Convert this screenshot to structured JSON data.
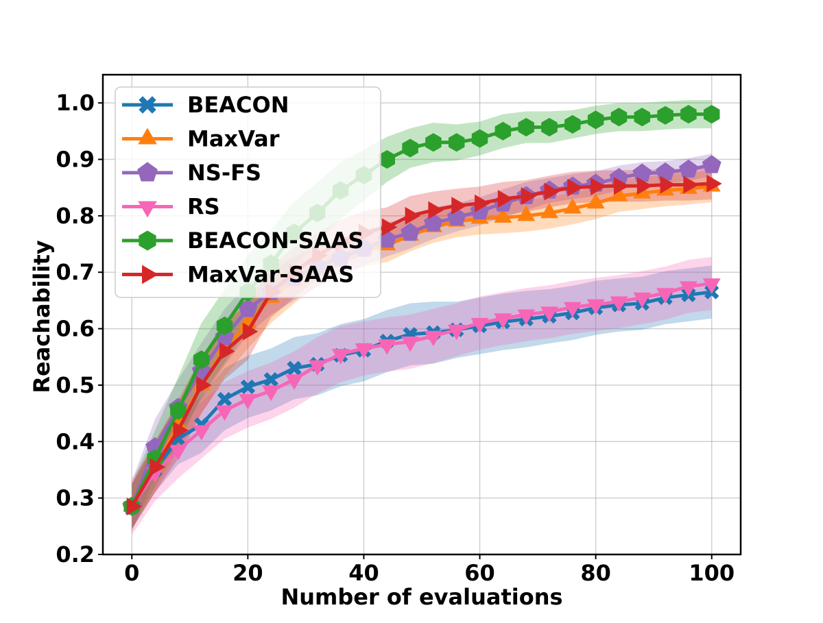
{
  "chart_data": {
    "type": "line",
    "xlabel": "Number of evaluations",
    "ylabel": "Reachability",
    "xlim": [
      -5,
      105
    ],
    "ylim": [
      0.2,
      1.05
    ],
    "x_ticks": [
      "0",
      "20",
      "40",
      "60",
      "80",
      "100"
    ],
    "y_ticks": [
      "0.2",
      "0.3",
      "0.4",
      "0.5",
      "0.6",
      "0.7",
      "0.8",
      "0.9",
      "1.0"
    ],
    "grid": true,
    "legend_position": "upper-left",
    "x": [
      0,
      4,
      8,
      12,
      16,
      20,
      24,
      28,
      32,
      36,
      40,
      44,
      48,
      52,
      56,
      60,
      64,
      68,
      72,
      76,
      80,
      84,
      88,
      92,
      96,
      100
    ],
    "series": [
      {
        "name": "BEACON",
        "color": "#1f77b4",
        "marker": "x",
        "values": [
          0.285,
          0.35,
          0.405,
          0.43,
          0.475,
          0.497,
          0.51,
          0.53,
          0.537,
          0.553,
          0.562,
          0.578,
          0.59,
          0.593,
          0.598,
          0.605,
          0.612,
          0.617,
          0.622,
          0.628,
          0.637,
          0.642,
          0.645,
          0.655,
          0.66,
          0.665
        ],
        "band": [
          0.04,
          0.04,
          0.045,
          0.05,
          0.055,
          0.055,
          0.055,
          0.055,
          0.055,
          0.055,
          0.055,
          0.055,
          0.055,
          0.055,
          0.05,
          0.05,
          0.05,
          0.05,
          0.048,
          0.048,
          0.048,
          0.047,
          0.047,
          0.047,
          0.047,
          0.047
        ]
      },
      {
        "name": "MaxVar",
        "color": "#ff7f0e",
        "marker": "triangle-up",
        "values": [
          0.285,
          0.355,
          0.43,
          0.5,
          0.565,
          0.61,
          0.655,
          0.685,
          0.71,
          0.73,
          0.74,
          0.748,
          0.765,
          0.78,
          0.79,
          0.795,
          0.797,
          0.8,
          0.805,
          0.813,
          0.822,
          0.835,
          0.84,
          0.845,
          0.848,
          0.852
        ],
        "band": [
          0.04,
          0.045,
          0.045,
          0.05,
          0.05,
          0.045,
          0.045,
          0.04,
          0.035,
          0.03,
          0.03,
          0.03,
          0.028,
          0.028,
          0.028,
          0.028,
          0.028,
          0.028,
          0.028,
          0.028,
          0.028,
          0.028,
          0.028,
          0.028,
          0.028,
          0.028
        ]
      },
      {
        "name": "NS-FS",
        "color": "#9467bd",
        "marker": "pentagon",
        "values": [
          0.285,
          0.39,
          0.46,
          0.525,
          0.585,
          0.635,
          0.665,
          0.69,
          0.71,
          0.725,
          0.742,
          0.758,
          0.77,
          0.787,
          0.797,
          0.808,
          0.822,
          0.835,
          0.845,
          0.852,
          0.857,
          0.867,
          0.875,
          0.877,
          0.882,
          0.89
        ],
        "band": [
          0.045,
          0.05,
          0.05,
          0.05,
          0.05,
          0.045,
          0.04,
          0.04,
          0.035,
          0.035,
          0.03,
          0.03,
          0.028,
          0.028,
          0.025,
          0.025,
          0.025,
          0.025,
          0.022,
          0.022,
          0.022,
          0.022,
          0.02,
          0.02,
          0.02,
          0.02
        ]
      },
      {
        "name": "RS",
        "color": "#f766b6",
        "marker": "triangle-down",
        "values": [
          0.285,
          0.345,
          0.385,
          0.42,
          0.455,
          0.475,
          0.49,
          0.51,
          0.535,
          0.555,
          0.565,
          0.572,
          0.577,
          0.587,
          0.598,
          0.61,
          0.618,
          0.625,
          0.63,
          0.638,
          0.643,
          0.648,
          0.655,
          0.663,
          0.675,
          0.68
        ],
        "band": [
          0.05,
          0.05,
          0.05,
          0.05,
          0.05,
          0.05,
          0.05,
          0.05,
          0.05,
          0.05,
          0.048,
          0.048,
          0.048,
          0.048,
          0.047,
          0.047,
          0.047,
          0.047,
          0.047,
          0.047,
          0.047,
          0.047,
          0.047,
          0.047,
          0.047,
          0.047
        ]
      },
      {
        "name": "BEACON-SAAS",
        "color": "#2ca02c",
        "marker": "hexagon",
        "values": [
          0.285,
          0.37,
          0.455,
          0.545,
          0.605,
          0.665,
          0.715,
          0.77,
          0.805,
          0.845,
          0.872,
          0.9,
          0.92,
          0.93,
          0.93,
          0.937,
          0.95,
          0.957,
          0.957,
          0.962,
          0.97,
          0.975,
          0.975,
          0.978,
          0.98,
          0.98
        ],
        "band": [
          0.04,
          0.05,
          0.06,
          0.065,
          0.065,
          0.065,
          0.06,
          0.055,
          0.055,
          0.05,
          0.045,
          0.04,
          0.035,
          0.035,
          0.032,
          0.03,
          0.03,
          0.028,
          0.028,
          0.025,
          0.025,
          0.025,
          0.025,
          0.025,
          0.025,
          0.025
        ]
      },
      {
        "name": "MaxVar-SAAS",
        "color": "#d62728",
        "marker": "triangle-right",
        "values": [
          0.285,
          0.355,
          0.42,
          0.5,
          0.56,
          0.595,
          0.665,
          0.7,
          0.73,
          0.753,
          0.77,
          0.78,
          0.8,
          0.81,
          0.818,
          0.822,
          0.83,
          0.835,
          0.843,
          0.85,
          0.852,
          0.853,
          0.853,
          0.855,
          0.855,
          0.857
        ],
        "band": [
          0.04,
          0.045,
          0.05,
          0.05,
          0.05,
          0.05,
          0.045,
          0.045,
          0.04,
          0.04,
          0.038,
          0.035,
          0.035,
          0.033,
          0.03,
          0.03,
          0.03,
          0.028,
          0.028,
          0.028,
          0.028,
          0.028,
          0.028,
          0.028,
          0.028,
          0.028
        ]
      }
    ]
  }
}
